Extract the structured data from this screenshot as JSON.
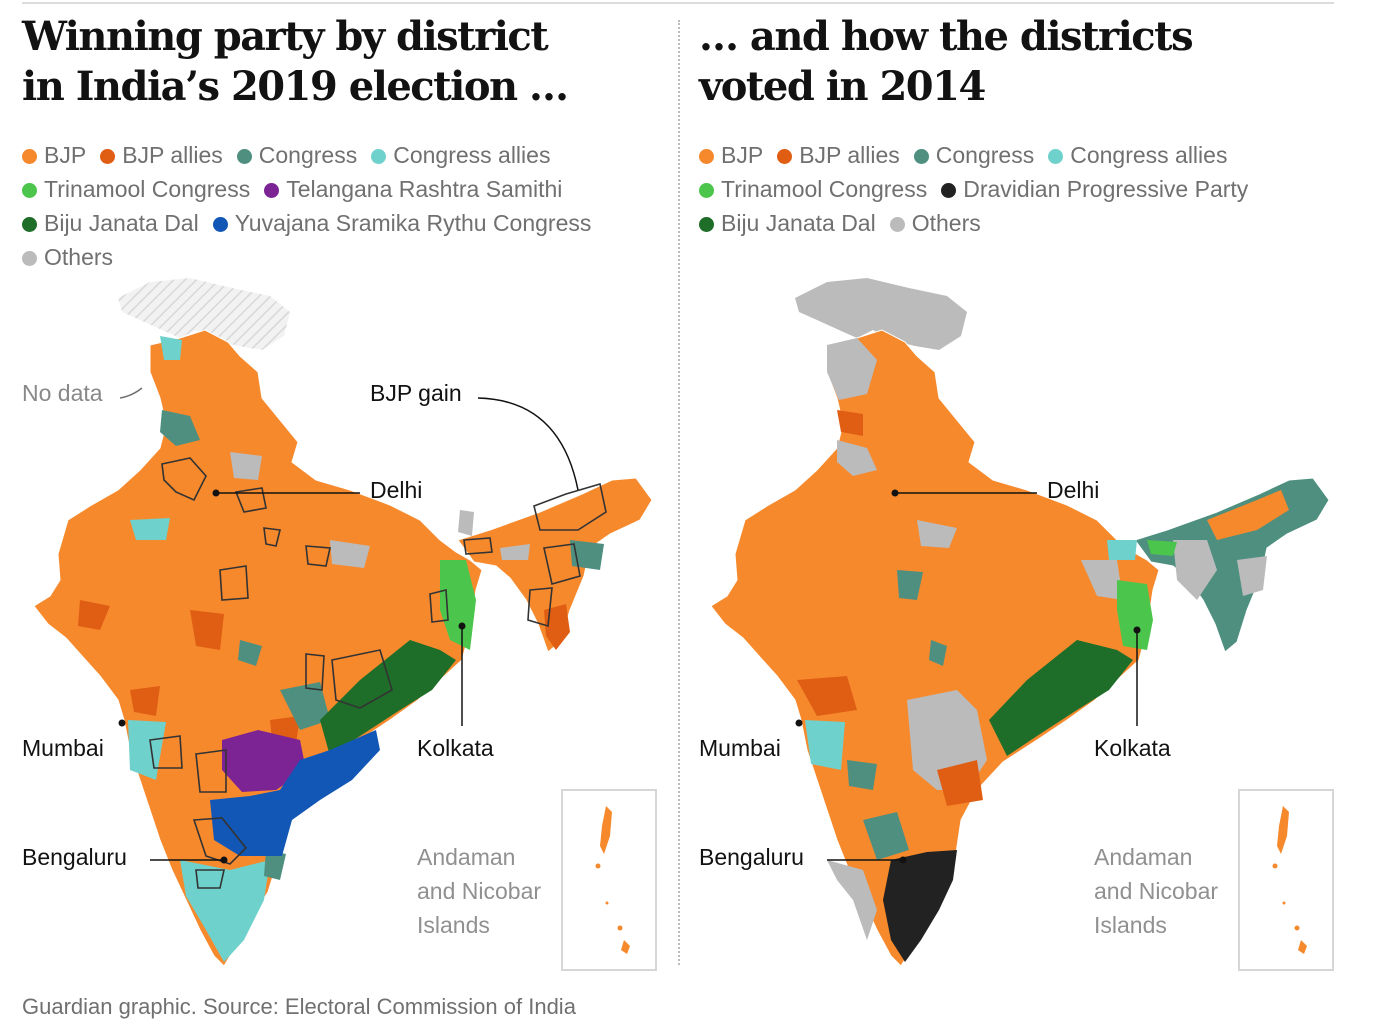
{
  "left": {
    "title_lines": [
      "Winning party by district",
      "in India’s 2019 election …"
    ],
    "legend_rows": [
      [
        {
          "label": "BJP",
          "color": "#f7892d"
        },
        {
          "label": "BJP allies",
          "color": "#e05e13"
        },
        {
          "label": "Congress",
          "color": "#4e8f80"
        },
        {
          "label": "Congress allies",
          "color": "#6fd1cc"
        }
      ],
      [
        {
          "label": "Trinamool Congress",
          "color": "#4cc54c"
        },
        {
          "label": "Telangana Rashtra Samithi",
          "color": "#7d2495"
        }
      ],
      [
        {
          "label": "Biju Janata Dal",
          "color": "#1e6e29"
        },
        {
          "label": "Yuvajana Sramika Rythu Congress",
          "color": "#1257b5"
        }
      ],
      [
        {
          "label": "Others",
          "color": "#bbbbbb"
        }
      ]
    ],
    "labels": {
      "no_data": "No data",
      "bjp_gain": "BJP gain",
      "delhi": "Delhi",
      "mumbai": "Mumbai",
      "kolkata": "Kolkata",
      "bengaluru": "Bengaluru"
    },
    "island_lines": [
      "Andaman",
      "and Nicobar",
      "Islands"
    ]
  },
  "right": {
    "title_lines": [
      "… and how the districts",
      "voted in 2014"
    ],
    "legend_rows": [
      [
        {
          "label": "BJP",
          "color": "#f7892d"
        },
        {
          "label": "BJP allies",
          "color": "#e05e13"
        },
        {
          "label": "Congress",
          "color": "#4e8f80"
        },
        {
          "label": "Congress allies",
          "color": "#6fd1cc"
        }
      ],
      [
        {
          "label": "Trinamool Congress",
          "color": "#4cc54c"
        },
        {
          "label": "Dravidian Progressive Party",
          "color": "#222222"
        }
      ],
      [
        {
          "label": "Biju Janata Dal",
          "color": "#1e6e29"
        },
        {
          "label": "Others",
          "color": "#bbbbbb"
        }
      ]
    ],
    "labels": {
      "delhi": "Delhi",
      "mumbai": "Mumbai",
      "kolkata": "Kolkata",
      "bengaluru": "Bengaluru"
    },
    "island_lines": [
      "Andaman",
      "and Nicobar",
      "Islands"
    ]
  },
  "source": "Guardian graphic. Source: Electoral Commission of India"
}
